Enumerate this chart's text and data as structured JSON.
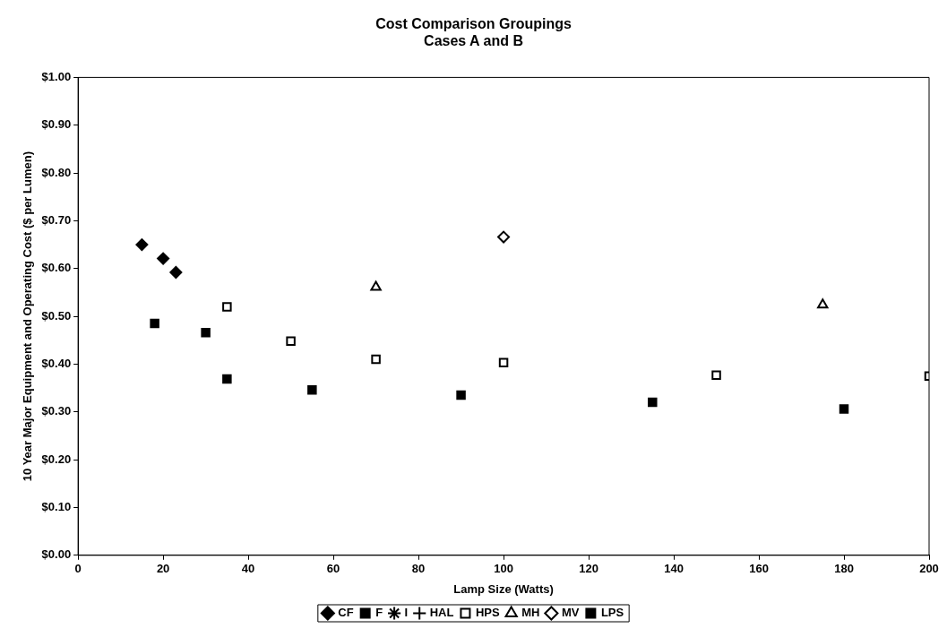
{
  "chart_data": {
    "type": "scatter",
    "title": "Cost Comparison Groupings\nCases A and B",
    "xlabel": "Lamp Size (Watts)",
    "ylabel": "10 Year Major Equipment and Operating Cost ($ per Lumen)",
    "xlim": [
      0,
      200
    ],
    "xticks": [
      0,
      20,
      40,
      60,
      80,
      100,
      120,
      140,
      160,
      180,
      200
    ],
    "ylim": [
      0,
      1
    ],
    "yticks": [
      {
        "value": 0,
        "label": "$0.00"
      },
      {
        "value": 0.1,
        "label": "$0.10"
      },
      {
        "value": 0.2,
        "label": "$0.20"
      },
      {
        "value": 0.3,
        "label": "$0.30"
      },
      {
        "value": 0.4,
        "label": "$0.40"
      },
      {
        "value": 0.5,
        "label": "$0.50"
      },
      {
        "value": 0.6,
        "label": "$0.60"
      },
      {
        "value": 0.7,
        "label": "$0.70"
      },
      {
        "value": 0.8,
        "label": "$0.80"
      },
      {
        "value": 0.9,
        "label": "$0.90"
      },
      {
        "value": 1,
        "label": "$1.00"
      }
    ],
    "grid": false,
    "legend": "bottom",
    "series": [
      {
        "name": "CF",
        "color": "#000000",
        "marker": "diamond",
        "x": [
          15,
          20,
          23
        ],
        "values": [
          0.65,
          0.621,
          0.592
        ]
      },
      {
        "name": "F",
        "color": "#000000",
        "marker": "square",
        "x": [
          30
        ],
        "values": [
          0.466
        ]
      },
      {
        "name": "I",
        "color": "#000000",
        "marker": "star"
      },
      {
        "name": "HAL",
        "color": "#000000",
        "marker": "cross"
      },
      {
        "name": "HPS",
        "color": "#000000",
        "marker": "square-open",
        "x": [
          35,
          50,
          70,
          100,
          150,
          200
        ],
        "values": [
          0.52,
          0.448,
          0.41,
          0.403,
          0.377,
          0.375
        ]
      },
      {
        "name": "MH",
        "color": "#000000",
        "marker": "triangle-open",
        "x": [
          70,
          175
        ],
        "values": [
          0.561,
          0.524
        ]
      },
      {
        "name": "MV",
        "color": "#000000",
        "marker": "diamond-open",
        "x": [
          100
        ],
        "values": [
          0.666
        ]
      },
      {
        "name": "LPS",
        "color": "#000000",
        "marker": "square",
        "x": [
          18,
          35,
          55,
          90,
          135,
          180
        ],
        "values": [
          0.485,
          0.369,
          0.346,
          0.335,
          0.32,
          0.306
        ]
      }
    ]
  }
}
